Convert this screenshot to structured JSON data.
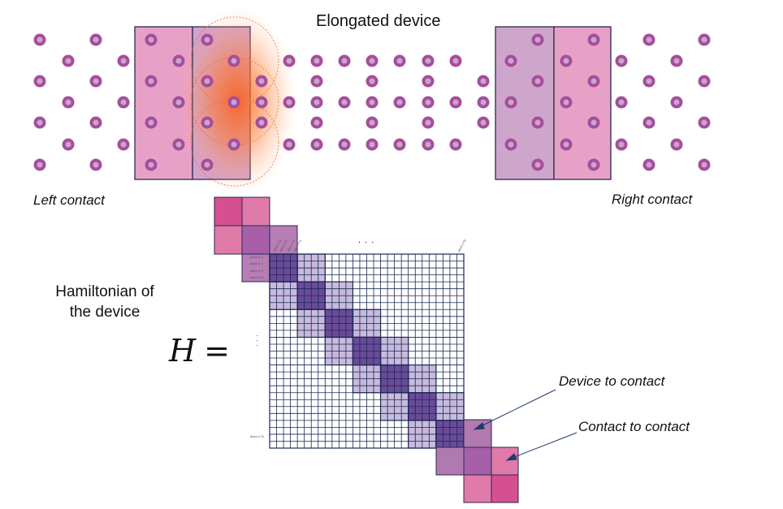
{
  "title": "Elongated device",
  "left_contact": "Left contact",
  "right_contact": "Right contact",
  "hamiltonian_label_line1": "Hamiltonian of",
  "hamiltonian_label_line2": "the device",
  "equation_symbol": "H",
  "equation_sign": "=",
  "device_to_contact": "Device to contact",
  "contact_to_contact": "Contact to contact",
  "top_ellipsis": ". . .",
  "row_label_bottom": "atom n°N",
  "row_labels_left": [
    "atom n°1",
    "atom n°2",
    "atom n°3",
    "atom n°4"
  ],
  "col_labels_top": [
    "atom n°1",
    "atom n°2",
    "atom n°3",
    "atom n°4"
  ],
  "col_label_last": "atom n°N",
  "colors": {
    "atom_outer": "#a64d9c",
    "atom_inner": "#c9a6cc",
    "contact_pink": "#e8a1c6",
    "contact_mauve": "#cfa6cb",
    "matrix_line": "#1a2a55",
    "block_dark": "#6b4a99",
    "block_light": "#9a84c0",
    "glow": "#ff6a1a"
  }
}
